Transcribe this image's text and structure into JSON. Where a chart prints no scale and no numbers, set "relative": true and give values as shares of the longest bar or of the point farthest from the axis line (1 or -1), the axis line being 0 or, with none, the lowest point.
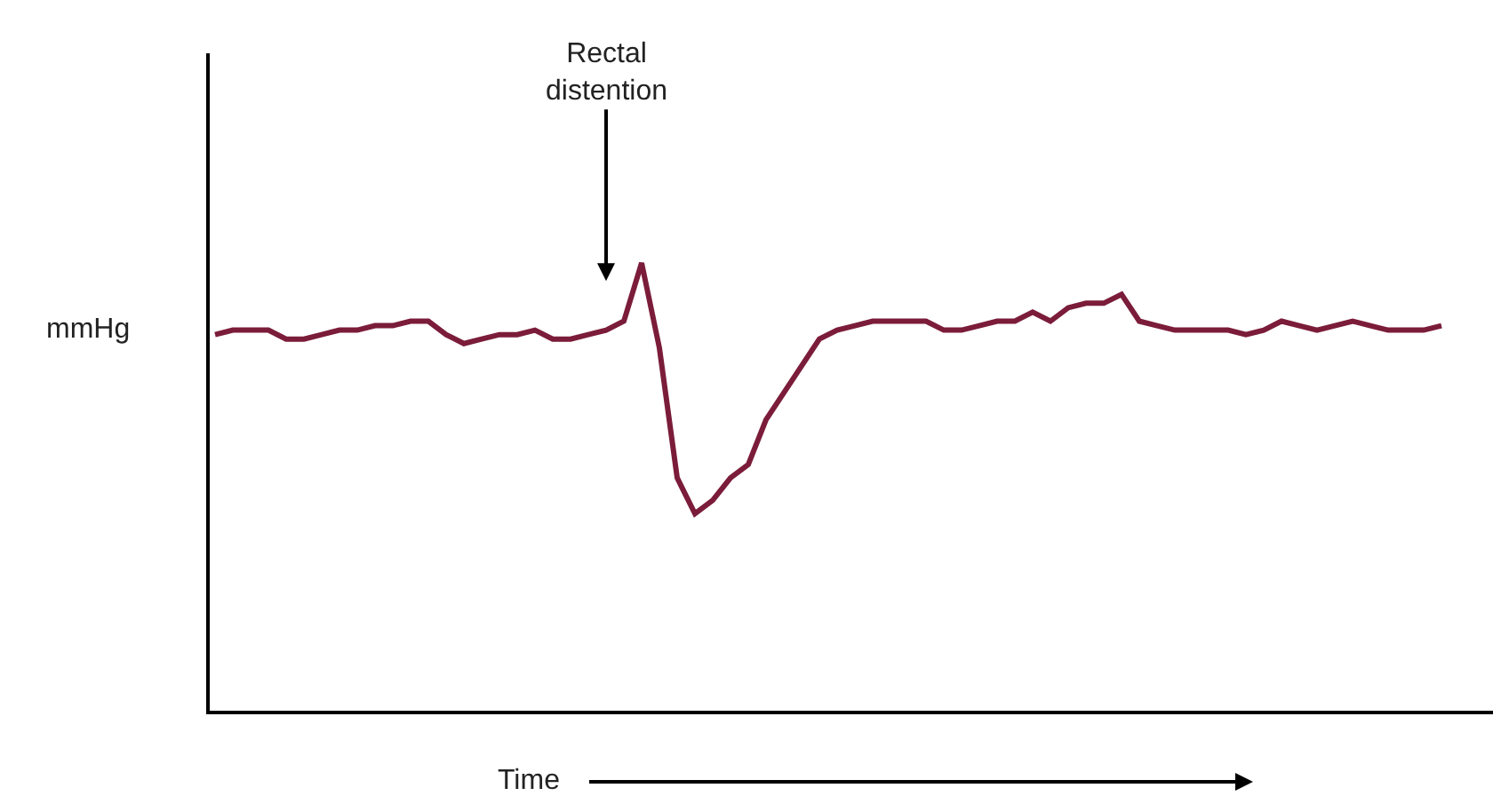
{
  "chart_data": {
    "type": "line",
    "relative": true,
    "xlabel": "Time",
    "ylabel": "mmHg",
    "color": "#7b1c3a",
    "marker": "none",
    "annotations": [
      "Rectal\ndistention"
    ],
    "categories": [
      null,
      null,
      null,
      null,
      null,
      null,
      null,
      null,
      null,
      null,
      null,
      null,
      null,
      null,
      null,
      null,
      null,
      null,
      null,
      null,
      null,
      null,
      null,
      null,
      null,
      null,
      null,
      null,
      null,
      null,
      null,
      null,
      null,
      null,
      null,
      null,
      null,
      null,
      null,
      null,
      null,
      null,
      null,
      null,
      null,
      null,
      null,
      null,
      null,
      null,
      null,
      null,
      null,
      null,
      null,
      null,
      null,
      null,
      null,
      null,
      null,
      null,
      null,
      null,
      null,
      null,
      null,
      null,
      null,
      null
    ],
    "values": [
      0.84,
      0.85,
      0.85,
      0.85,
      0.83,
      0.83,
      0.84,
      0.85,
      0.85,
      0.86,
      0.86,
      0.87,
      0.87,
      0.84,
      0.82,
      0.83,
      0.84,
      0.84,
      0.85,
      0.83,
      0.83,
      0.84,
      0.85,
      0.87,
      1.0,
      0.81,
      0.52,
      0.44,
      0.47,
      0.52,
      0.55,
      0.65,
      0.71,
      0.77,
      0.83,
      0.85,
      0.86,
      0.87,
      0.87,
      0.87,
      0.87,
      0.85,
      0.85,
      0.86,
      0.87,
      0.87,
      0.89,
      0.87,
      0.9,
      0.91,
      0.91,
      0.93,
      0.87,
      0.86,
      0.85,
      0.85,
      0.85,
      0.85,
      0.84,
      0.85,
      0.87,
      0.86,
      0.85,
      0.86,
      0.87,
      0.86,
      0.85,
      0.85,
      0.85,
      0.86
    ]
  }
}
